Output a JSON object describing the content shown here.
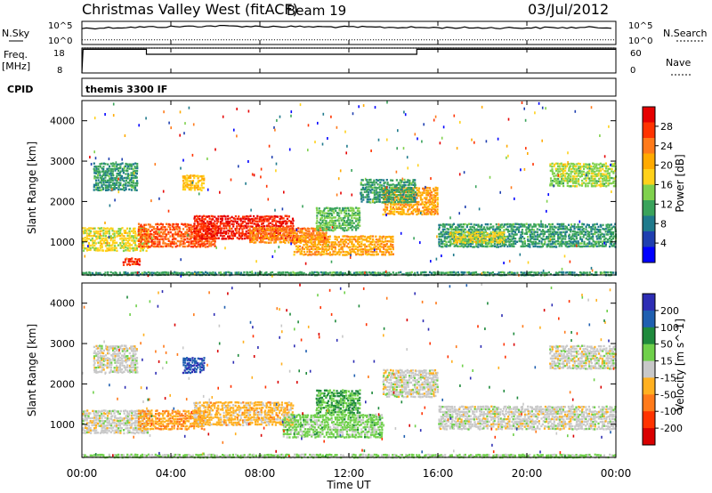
{
  "header": {
    "title": "Christmas Valley West (fitACF)",
    "beam": "Beam 19",
    "date": "03/Jul/2012"
  },
  "summary_panels": {
    "nsky_label": "N.Sky",
    "nsky_ticks": [
      "10^5",
      "10^0"
    ],
    "nsearch_label": "N.Search",
    "nsearch_ticks": [
      "10^5",
      "10^0"
    ],
    "freq_label": "Freq.",
    "freq_unit": "[MHz]",
    "freq_ticks": [
      "18",
      "8"
    ],
    "nave_label": "Nave",
    "nave_ticks": [
      "60",
      "0"
    ],
    "cpid_label": "CPID",
    "cpid_value": "themis 3300 IF"
  },
  "x_axis": {
    "label": "Time UT",
    "ticks": [
      "00:00",
      "04:00",
      "08:00",
      "12:00",
      "16:00",
      "20:00",
      "00:00"
    ]
  },
  "power_colorbar": {
    "label": "Power [dB]",
    "ticks": [
      "28",
      "24",
      "20",
      "16",
      "12",
      "8",
      "4"
    ],
    "colors": [
      "#e60000",
      "#ff3300",
      "#ff7a1a",
      "#ffaa00",
      "#ffd11a",
      "#7fd14d",
      "#3aa35b",
      "#1f7a8c",
      "#1f3fb0",
      "#0000ff"
    ]
  },
  "velocity_colorbar": {
    "label": "Velocity [m s^-1]",
    "ticks": [
      "200",
      "100",
      "50",
      "15",
      "-15",
      "-50",
      "-100",
      "-200"
    ],
    "colors": [
      "#2d2db4",
      "#1f5fb0",
      "#1f8a3c",
      "#6fd04a",
      "#c8c8c8",
      "#ffb020",
      "#ff7a1a",
      "#ff3300",
      "#d90000"
    ]
  },
  "chart_data": [
    {
      "type": "line",
      "title": "N.Sky / N.Search",
      "xlim": [
        0,
        24
      ],
      "y_scale": "log",
      "ylim": [
        1,
        100000
      ],
      "series": [
        {
          "name": "N.Sky",
          "x": [
            0,
            2,
            4,
            6,
            8,
            10,
            12,
            14,
            16,
            18,
            20,
            22,
            24
          ],
          "values": [
            3000,
            5000,
            7000,
            10000,
            8000,
            7000,
            6000,
            5000,
            4500,
            4000,
            4000,
            4500,
            5000
          ]
        },
        {
          "name": "N.Search",
          "x": [
            0,
            24
          ],
          "values": [
            10,
            10
          ]
        }
      ]
    },
    {
      "type": "line",
      "title": "Freq / Nave",
      "xlim": [
        0,
        24
      ],
      "ylim": [
        8,
        18
      ],
      "series": [
        {
          "name": "Freq.",
          "x": [
            0,
            0.05,
            2.9,
            2.9,
            15.05,
            15.05,
            24
          ],
          "values": [
            8,
            17.5,
            17.5,
            15.5,
            15.5,
            17.5,
            17.5
          ]
        },
        {
          "name": "Nave",
          "x": [
            0,
            24
          ],
          "values": [
            18,
            18
          ]
        }
      ]
    },
    {
      "type": "heatmap",
      "title": "Power [dB]",
      "xlabel": "Time UT",
      "ylabel": "Slant Range [km]",
      "xlim": [
        0,
        24
      ],
      "ylim": [
        180,
        4500
      ],
      "clim": [
        0,
        30
      ],
      "bands": [
        {
          "t0": 0.0,
          "t1": 3.0,
          "r0": 800,
          "r1": 1400,
          "v": 16
        },
        {
          "t0": 1.8,
          "t1": 2.6,
          "r0": 450,
          "r1": 650,
          "v": 26
        },
        {
          "t0": 2.5,
          "t1": 6.0,
          "r0": 900,
          "r1": 1500,
          "v": 24
        },
        {
          "t0": 5.0,
          "t1": 9.5,
          "r0": 1100,
          "r1": 1700,
          "v": 27
        },
        {
          "t0": 7.5,
          "t1": 11.0,
          "r0": 1000,
          "r1": 1400,
          "v": 22
        },
        {
          "t0": 9.5,
          "t1": 14.0,
          "r0": 700,
          "r1": 1200,
          "v": 20
        },
        {
          "t0": 10.5,
          "t1": 12.5,
          "r0": 1300,
          "r1": 1900,
          "v": 12
        },
        {
          "t0": 13.5,
          "t1": 16.0,
          "r0": 1700,
          "r1": 2400,
          "v": 20
        },
        {
          "t0": 12.5,
          "t1": 15.0,
          "r0": 2000,
          "r1": 2600,
          "v": 10
        },
        {
          "t0": 16.0,
          "t1": 24.0,
          "r0": 900,
          "r1": 1500,
          "v": 10
        },
        {
          "t0": 16.5,
          "t1": 19.0,
          "r0": 1000,
          "r1": 1300,
          "v": 16
        },
        {
          "t0": 21.0,
          "t1": 24.0,
          "r0": 2400,
          "r1": 3000,
          "v": 14
        },
        {
          "t0": 0.5,
          "t1": 2.5,
          "r0": 2300,
          "r1": 3000,
          "v": 10
        },
        {
          "t0": 4.5,
          "t1": 5.5,
          "r0": 2300,
          "r1": 2700,
          "v": 18
        },
        {
          "t0": 0.0,
          "t1": 24.0,
          "r0": 200,
          "r1": 300,
          "v": 10
        }
      ]
    },
    {
      "type": "heatmap",
      "title": "Velocity [m s^-1]",
      "xlabel": "Time UT",
      "ylabel": "Slant Range [km]",
      "xlim": [
        0,
        24
      ],
      "ylim": [
        180,
        4500
      ],
      "clim": [
        -200,
        200
      ],
      "bands": [
        {
          "t0": 0.0,
          "t1": 3.0,
          "r0": 800,
          "r1": 1400,
          "v": 0
        },
        {
          "t0": 2.5,
          "t1": 5.5,
          "r0": 900,
          "r1": 1400,
          "v": -60
        },
        {
          "t0": 5.0,
          "t1": 9.5,
          "r0": 1000,
          "r1": 1600,
          "v": -40
        },
        {
          "t0": 9.0,
          "t1": 13.5,
          "r0": 700,
          "r1": 1300,
          "v": 40
        },
        {
          "t0": 10.5,
          "t1": 12.5,
          "r0": 1300,
          "r1": 1900,
          "v": 70
        },
        {
          "t0": 13.5,
          "t1": 16.0,
          "r0": 1700,
          "r1": 2400,
          "v": 0
        },
        {
          "t0": 16.0,
          "t1": 24.0,
          "r0": 900,
          "r1": 1500,
          "v": 0
        },
        {
          "t0": 21.0,
          "t1": 24.0,
          "r0": 2400,
          "r1": 3000,
          "v": 0
        },
        {
          "t0": 0.5,
          "t1": 2.5,
          "r0": 2300,
          "r1": 3000,
          "v": 0
        },
        {
          "t0": 4.5,
          "t1": 5.5,
          "r0": 2300,
          "r1": 2700,
          "v": 150
        },
        {
          "t0": 0.0,
          "t1": 24.0,
          "r0": 200,
          "r1": 300,
          "v": 30
        }
      ]
    }
  ]
}
